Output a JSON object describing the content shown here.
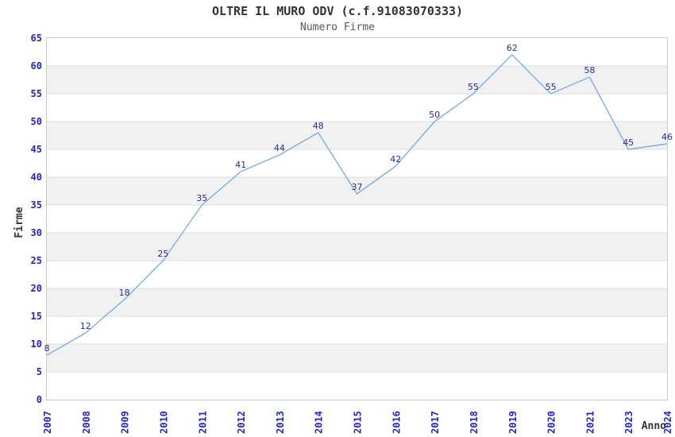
{
  "chart_data": {
    "type": "line",
    "title": "OLTRE IL MURO ODV (c.f.91083070333)",
    "subtitle": "Numero Firme",
    "xlabel": "Anno",
    "ylabel": "Firme",
    "categories": [
      "2007",
      "2008",
      "2009",
      "2010",
      "2011",
      "2012",
      "2013",
      "2014",
      "2015",
      "2016",
      "2017",
      "2018",
      "2019",
      "2020",
      "2021",
      "2023",
      "2024"
    ],
    "values": [
      8,
      12,
      18,
      25,
      35,
      41,
      44,
      48,
      37,
      42,
      50,
      55,
      62,
      55,
      58,
      45,
      46
    ],
    "ylim": [
      0,
      65
    ],
    "ytick_step": 5,
    "grid": "horizontal-lines-with-alternating-bands",
    "legend": "none",
    "colors": {
      "line": "#7aafe2",
      "data_label": "#2b2b9b",
      "tick_label": "#2323cb",
      "band": "#f1f1f1",
      "gridline": "#dddddd",
      "plot_border": "#c9c9c9",
      "title": "#333333",
      "subtitle": "#595959",
      "axis_title": "#333333",
      "background": "#ffffff"
    }
  }
}
